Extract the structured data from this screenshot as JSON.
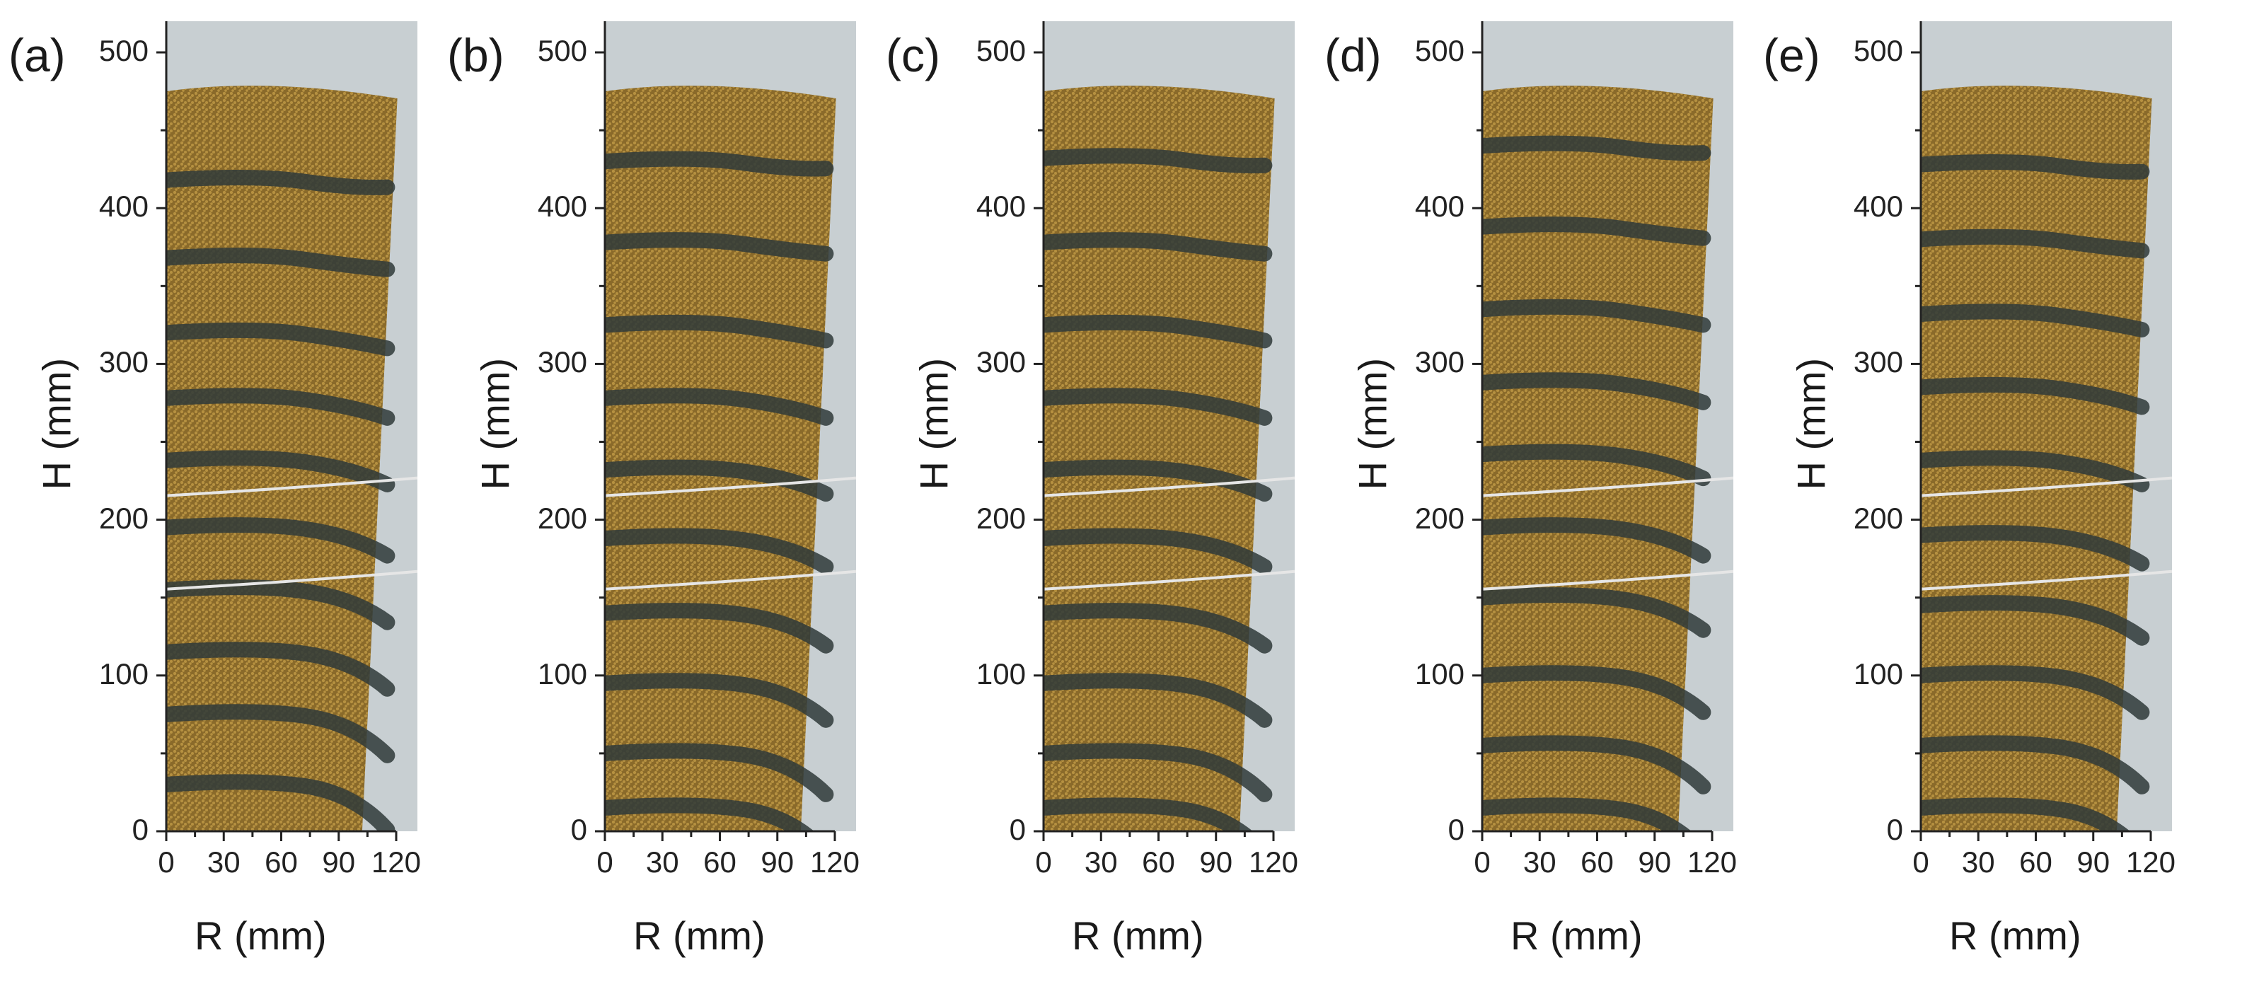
{
  "figure": {
    "panels": [
      {
        "letter": "(a)",
        "ylabel": "H (mm)",
        "xlabel": "R (mm)",
        "yticks": [
          "0",
          "100",
          "200",
          "300",
          "400",
          "500"
        ],
        "xticks": [
          "0",
          "30",
          "60",
          "90",
          "120"
        ],
        "photo_subject": "granular-column-photo-a",
        "dark_band_heights_mm": [
          418,
          368,
          320,
          278,
          238,
          195,
          155,
          115,
          75,
          30
        ]
      },
      {
        "letter": "(b)",
        "ylabel": "H (mm)",
        "xlabel": "R (mm)",
        "yticks": [
          "0",
          "100",
          "200",
          "300",
          "400",
          "500"
        ],
        "xticks": [
          "0",
          "30",
          "60",
          "90",
          "120"
        ],
        "photo_subject": "granular-column-photo-b",
        "dark_band_heights_mm": [
          430,
          378,
          325,
          278,
          232,
          188,
          140,
          95,
          50,
          15
        ]
      },
      {
        "letter": "(c)",
        "ylabel": "H (mm)",
        "xlabel": "R (mm)",
        "yticks": [
          "0",
          "100",
          "200",
          "300",
          "400",
          "500"
        ],
        "xticks": [
          "0",
          "30",
          "60",
          "90",
          "120"
        ],
        "photo_subject": "granular-column-photo-c",
        "dark_band_heights_mm": [
          432,
          378,
          325,
          278,
          232,
          188,
          140,
          95,
          50,
          15
        ]
      },
      {
        "letter": "(d)",
        "ylabel": "H (mm)",
        "xlabel": "R (mm)",
        "yticks": [
          "0",
          "100",
          "200",
          "300",
          "400",
          "500"
        ],
        "xticks": [
          "0",
          "30",
          "60",
          "90",
          "120"
        ],
        "photo_subject": "granular-column-photo-d",
        "dark_band_heights_mm": [
          440,
          388,
          335,
          288,
          242,
          195,
          150,
          100,
          55,
          15
        ]
      },
      {
        "letter": "(e)",
        "ylabel": "H (mm)",
        "xlabel": "R (mm)",
        "yticks": [
          "0",
          "100",
          "200",
          "300",
          "400",
          "500"
        ],
        "xticks": [
          "0",
          "30",
          "60",
          "90",
          "120"
        ],
        "photo_subject": "granular-column-photo-e",
        "dark_band_heights_mm": [
          428,
          380,
          332,
          285,
          238,
          190,
          145,
          100,
          55,
          15
        ]
      }
    ],
    "colors": {
      "grain_fill": "#8a6a2a",
      "grain_highlight": "#c9a24a",
      "dark_band": "#2f3a3a",
      "glass_background": "#c8cfd2",
      "axis_color": "#222222"
    }
  }
}
